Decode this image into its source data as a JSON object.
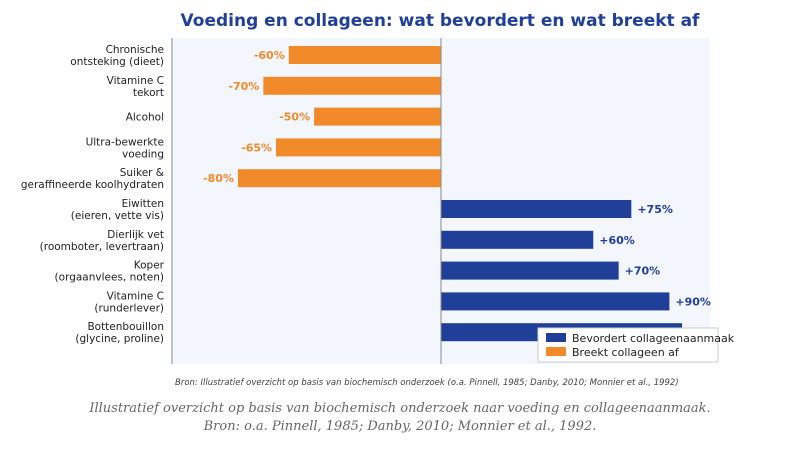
{
  "chart_data": {
    "type": "bar",
    "orientation": "horizontal",
    "title": "Voeding en collageen: wat bevordert en wat breekt af",
    "categories": [
      [
        "Chronische",
        "ontsteking (dieet)"
      ],
      [
        "Vitamine C",
        "tekort"
      ],
      [
        "Alcohol"
      ],
      [
        "Ultra-bewerkte",
        "voeding"
      ],
      [
        "Suiker &",
        "geraffineerde koolhydraten"
      ],
      [
        "Eiwitten",
        "(eieren, vette vis)"
      ],
      [
        "Dierlijk vet",
        "(roomboter, levertraan)"
      ],
      [
        "Koper",
        "(orgaanvlees, noten)"
      ],
      [
        "Vitamine C",
        "(runderlever)"
      ],
      [
        "Bottenbouillon",
        "(glycine, proline)"
      ]
    ],
    "values": [
      -60,
      -70,
      -50,
      -65,
      -80,
      75,
      60,
      70,
      90,
      95
    ],
    "value_labels": [
      "-60%",
      "-70%",
      "-50%",
      "-65%",
      "-80%",
      "+75%",
      "+60%",
      "+70%",
      "+90%",
      ""
    ],
    "series": [
      {
        "name": "Bevordert collageenaanmaak",
        "color": "#1f3f99"
      },
      {
        "name": "Breekt collageen af",
        "color": "#f28a2a"
      }
    ],
    "xlim": [
      -106,
      106
    ],
    "grid": false,
    "legend": "bottom-right",
    "source": "Bron: Illustratief overzicht op basis van biochemisch onderzoek (o.a. Pinnell, 1985; Danby, 2010; Monnier et al., 1992)"
  },
  "colors": {
    "title": "#1f3f99",
    "positive": "#1f3f99",
    "negative": "#f28a2a",
    "plot_bg": "#f3f6fc",
    "axis": "#888888"
  },
  "caption": {
    "line1": "Illustratief overzicht op basis van biochemisch onderzoek naar voeding en collageenaanmaak.",
    "line2": "Bron: o.a. Pinnell, 1985; Danby, 2010; Monnier et al., 1992."
  }
}
